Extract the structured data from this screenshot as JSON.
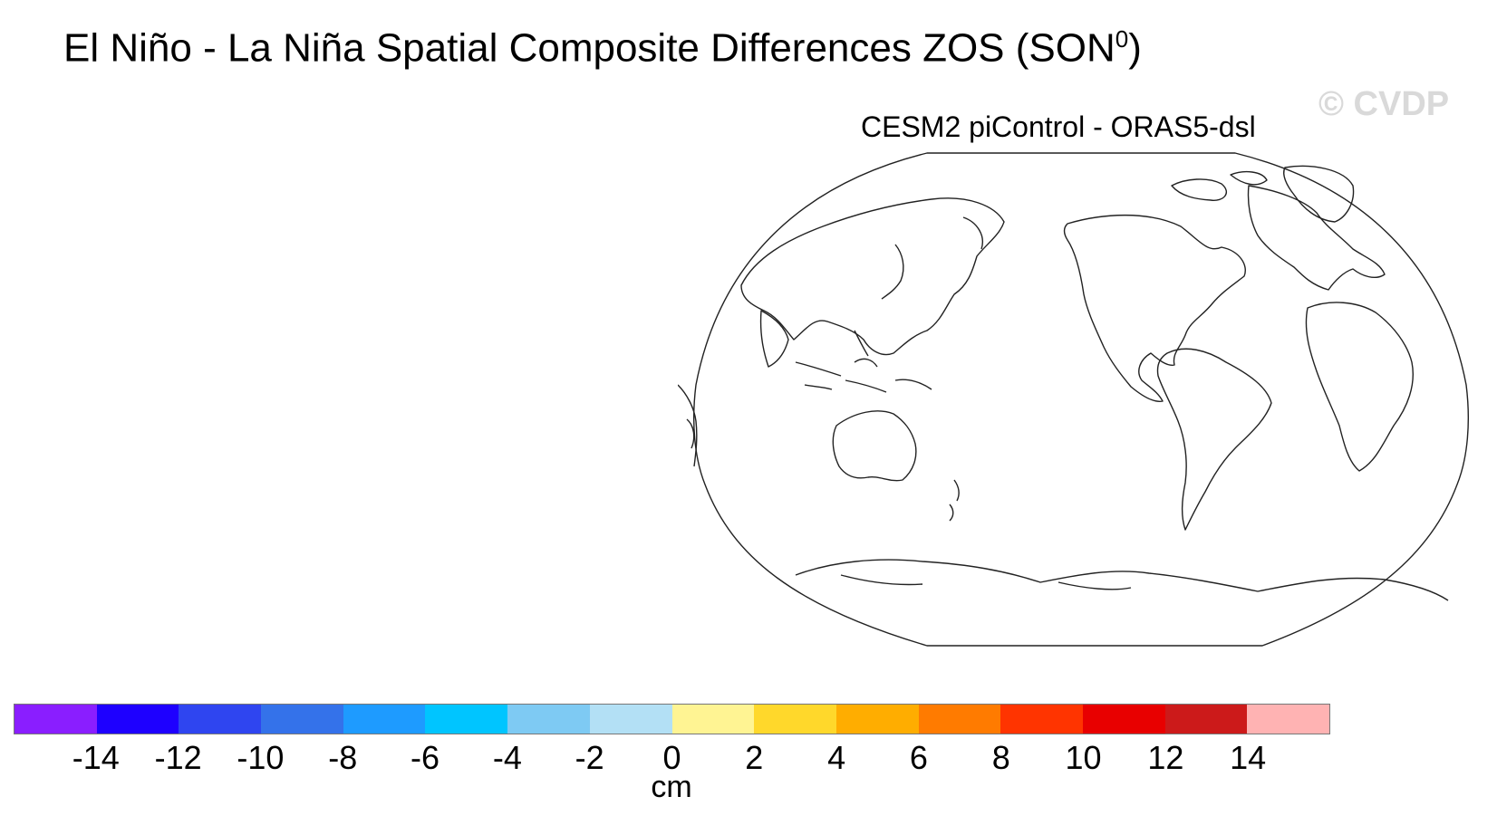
{
  "figure": {
    "title": "El Niño - La Niña Spatial Composite Differences ZOS (SON",
    "title_superscript": "0",
    "title_suffix": ")",
    "subtitle": "CESM2 piControl - ORAS5-dsl",
    "watermark": "© CVDP"
  },
  "colorbar": {
    "units": "cm",
    "colors": [
      "#8a1eff",
      "#1e00ff",
      "#2f45f0",
      "#3472ea",
      "#1e9bff",
      "#00c5ff",
      "#7ecaf3",
      "#b3e0f5",
      "#fff493",
      "#ffd82b",
      "#ffad00",
      "#ff7b00",
      "#ff3400",
      "#e80000",
      "#cc1a1a",
      "#ffb3b3"
    ],
    "tick_labels": [
      "-14",
      "-12",
      "-10",
      "-8",
      "-6",
      "-4",
      "-2",
      "0",
      "2",
      "4",
      "6",
      "8",
      "10",
      "12",
      "14"
    ]
  },
  "map": {
    "projection": "Robinson",
    "central_longitude": "Pacific",
    "data_shading": "none"
  }
}
